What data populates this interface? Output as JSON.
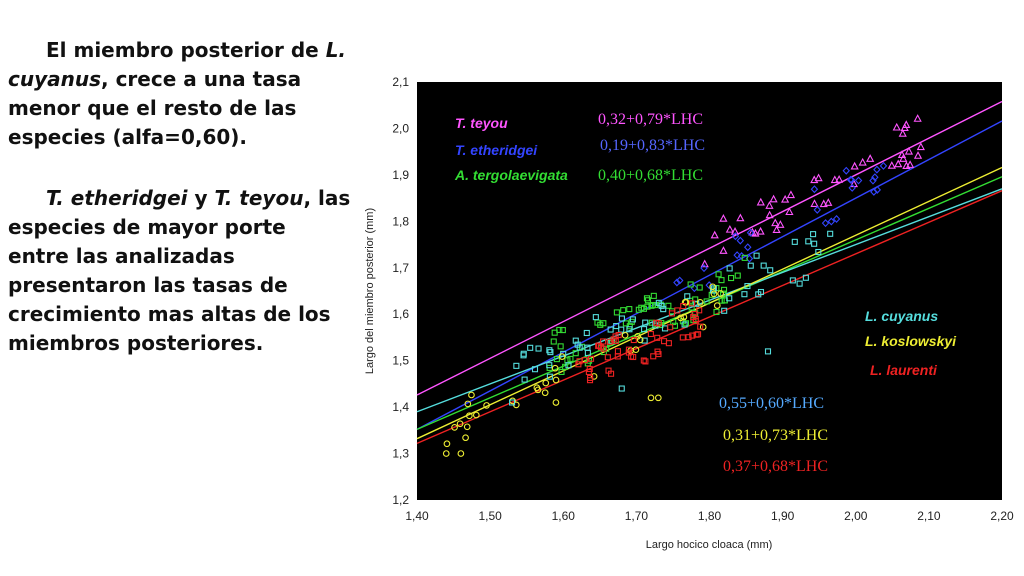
{
  "text": {
    "p1_a": "El miembro posterior de ",
    "p1_species": "L. cuyanus",
    "p1_b": ", crece a una tasa menor que el resto de las especies (alfa=0,60).",
    "p2_sp1": "T. etheridgei",
    "p2_and": " y ",
    "p2_sp2": "T. teyou",
    "p2_b": ", las especies de mayor porte entre las analizadas presentaron las tasas de crecimiento mas altas de los miembros posteriores."
  },
  "chart_data": {
    "type": "scatter",
    "xlabel": "Largo hocico cloaca (mm)",
    "ylabel": "Largo del miembro posterior (mm)",
    "xlim": [
      1.4,
      2.2
    ],
    "ylim": [
      1.2,
      2.1
    ],
    "x_ticks": [
      "1,40",
      "1,50",
      "1,60",
      "1,70",
      "1,80",
      "1,90",
      "2,00",
      "2,10",
      "2,20"
    ],
    "y_ticks": [
      "1,2",
      "1,3",
      "1,4",
      "1,5",
      "1,6",
      "1,7",
      "1,8",
      "1,9",
      "2,0",
      "2,1"
    ],
    "grid": false,
    "background": "#000000",
    "series": [
      {
        "name": "T. teyou",
        "color": "#ff55ff",
        "marker": "triangle",
        "intercept": 0.32,
        "slope": 0.79,
        "equation": "0,32+0,79*LHC",
        "x_range": [
          1.79,
          2.09
        ],
        "y_center": [
          1.75,
          1.98
        ]
      },
      {
        "name": "T. etheridgei",
        "color": "#3344ff",
        "marker": "diamond",
        "intercept": 0.19,
        "slope": 0.83,
        "equation": "0,19+0,83*LHC",
        "x_range": [
          1.75,
          2.06
        ],
        "y_center": [
          1.67,
          1.92
        ]
      },
      {
        "name": "A. tergolaevigata",
        "color": "#33dd33",
        "marker": "square",
        "intercept": 0.4,
        "slope": 0.68,
        "equation": "0,40+0,68*LHC",
        "x_range": [
          1.58,
          1.85
        ],
        "y_center": [
          1.51,
          1.68
        ]
      },
      {
        "name": "L. cuyanus",
        "color": "#55dddd",
        "marker": "square",
        "intercept": 0.55,
        "slope": 0.6,
        "equation": "0,55+0,60*LHC",
        "x_range": [
          1.53,
          1.97
        ],
        "y_center": [
          1.48,
          1.74
        ]
      },
      {
        "name": "L. koslowskyi",
        "color": "#eeee33",
        "marker": "circle",
        "intercept": 0.31,
        "slope": 0.73,
        "equation": "0,31+0,73*LHC",
        "x_range": [
          1.44,
          1.82
        ],
        "y_center": [
          1.36,
          1.64
        ]
      },
      {
        "name": "L. laurenti",
        "color": "#ee2222",
        "marker": "square",
        "intercept": 0.37,
        "slope": 0.68,
        "equation": "0,37+0,68*LHC",
        "x_range": [
          1.62,
          1.79
        ],
        "y_center": [
          1.47,
          1.59
        ]
      }
    ]
  }
}
